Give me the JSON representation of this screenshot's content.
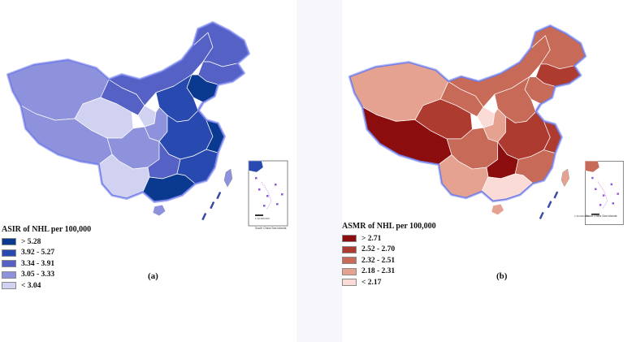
{
  "panel_a": {
    "label": "(a)",
    "legend_title": "ASIR of NHL per 100,000",
    "legend": [
      {
        "label": "> 5.28",
        "color": "#0a3a8f"
      },
      {
        "label": "3.92 - 5.27",
        "color": "#2749b0"
      },
      {
        "label": "3.34 - 3.91",
        "color": "#5661c6"
      },
      {
        "label": "3.05 - 3.33",
        "color": "#8e91db"
      },
      {
        "label": "< 3.04",
        "color": "#d1d2f1"
      }
    ],
    "outline_color": "#6f7be8",
    "scale_text": "1:10 000 000",
    "inset_caption": "South China Sea Islands"
  },
  "panel_b": {
    "label": "(b)",
    "legend_title": "ASMR of NHL per 100,000",
    "legend": [
      {
        "label": "> 2.71",
        "color": "#8b0d0d"
      },
      {
        "label": "2.52 - 2.70",
        "color": "#ad3b30"
      },
      {
        "label": "2.32 - 2.51",
        "color": "#c86a58"
      },
      {
        "label": "2.18 - 2.31",
        "color": "#e5a291"
      },
      {
        "label": "< 2.17",
        "color": "#fadbd6"
      }
    ],
    "outline_color": "#6f7be8",
    "scale_text": "1:10 000 000",
    "inset_caption": "South China Sea Islands"
  },
  "regions_a": {
    "xinjiang": 3,
    "tibet": 3,
    "qinghai": 4,
    "gansu": 2,
    "inner_mongolia": 2,
    "heilongjiang": 2,
    "jilin": 2,
    "liaoning": 0,
    "north_china": 1,
    "sichuan": 3,
    "yunnan": 4,
    "central": 1,
    "guizhou": 2,
    "southeast": 1,
    "guangdong": 0,
    "coast_east": 0,
    "ningxia": 4,
    "shaanxi": 3,
    "hainan": 3
  },
  "regions_b": {
    "xinjiang": 3,
    "tibet": 0,
    "qinghai": 1,
    "gansu": 2,
    "inner_mongolia": 2,
    "heilongjiang": 2,
    "jilin": 1,
    "liaoning": 2,
    "north_china": 2,
    "sichuan": 2,
    "yunnan": 3,
    "central": 1,
    "guizhou": 0,
    "southeast": 2,
    "guangdong": 4,
    "coast_east": 1,
    "ningxia": 4,
    "shaanxi": 3,
    "hainan": 3
  }
}
